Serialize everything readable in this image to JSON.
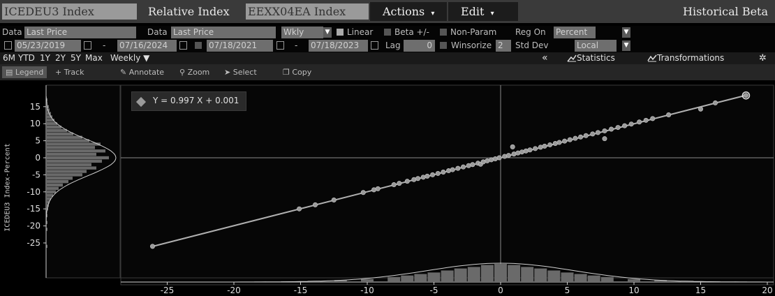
{
  "titlebar": {
    "security1": "ICEDEU3 Index",
    "relative_label": "Relative Index",
    "security2": "EEXX04EA Index",
    "actions_menu": "Actions",
    "edit_menu": "Edit",
    "function_title": "Historical Beta"
  },
  "params": {
    "data1_label": "Data",
    "data1_value": "Last Price",
    "data2_label": "Data",
    "data2_value": "Last Price",
    "frequency": "Wkly",
    "linear_label": "Linear",
    "beta_label": "Beta +/-",
    "nonparam_label": "Non-Param",
    "regon_label": "Reg On",
    "regon_value": "Percent",
    "range_start": "05/23/2019",
    "range_sep": "-",
    "range_end": "07/16/2024",
    "regress_start": "07/18/2021",
    "regress_sep": "-",
    "regress_end": "07/18/2023",
    "lag_label": "Lag",
    "lag_value": "0",
    "winsorize_label": "Winsorize",
    "winsorize_value": "2",
    "stddev_label": "Std Dev",
    "stddev_value": "Local"
  },
  "periods": [
    "6M",
    "YTD",
    "1Y",
    "2Y",
    "5Y",
    "Max"
  ],
  "period_frequency": "Weekly ▼",
  "right_tools": {
    "collapse": "«",
    "statistics": "Statistics",
    "transformations": "Transformations"
  },
  "toolbar": {
    "legend": "Legend",
    "track": "Track",
    "annotate": "Annotate",
    "zoom": "Zoom",
    "select": "Select",
    "copy": "Copy"
  },
  "icons": {
    "collapse": "double-chevron-left-icon",
    "statistics": "statistics-icon",
    "transformations": "transformations-icon",
    "settings": "gear-icon",
    "legend": "legend-icon",
    "track": "crosshair-icon",
    "annotate": "pencil-icon",
    "zoom": "magnifier-icon",
    "select": "cursor-icon",
    "copy": "copy-icon"
  },
  "colors": {
    "background": "#000000",
    "titlebar": "#3a3a3a",
    "field": "#6e6e6e",
    "points": "#9a9a9a",
    "fit_line": "#b0b0b0",
    "axis": "#cfcfcf"
  },
  "chart_data": {
    "type": "scatter",
    "title": "",
    "legend": "Y = 0.997 X + 0.001",
    "ylabel": "ICEDEU3 Index-Percent",
    "xlabel": "",
    "xlim": [
      -29,
      20.5
    ],
    "ylim": [
      -29,
      19
    ],
    "xticks": [
      -25,
      -20,
      -15,
      -10,
      -5,
      0,
      5,
      10,
      15,
      20
    ],
    "yticks": [
      15,
      10,
      5,
      0,
      -5,
      -10,
      -15,
      -20,
      -25
    ],
    "fit": {
      "slope": 0.997,
      "intercept": 0.001
    },
    "points": [
      [
        -26.1,
        -26.0
      ],
      [
        -15.1,
        -15.0
      ],
      [
        -13.9,
        -13.8
      ],
      [
        -12.5,
        -12.4
      ],
      [
        -10.3,
        -10.2
      ],
      [
        -9.5,
        -9.4
      ],
      [
        -9.2,
        -9.1
      ],
      [
        -8.0,
        -7.9
      ],
      [
        -7.6,
        -7.5
      ],
      [
        -7.0,
        -6.9
      ],
      [
        -6.5,
        -6.4
      ],
      [
        -6.2,
        -6.1
      ],
      [
        -5.8,
        -5.7
      ],
      [
        -5.5,
        -5.4
      ],
      [
        -5.1,
        -5.0
      ],
      [
        -4.7,
        -4.6
      ],
      [
        -4.3,
        -4.2
      ],
      [
        -3.9,
        -3.8
      ],
      [
        -3.6,
        -3.5
      ],
      [
        -3.2,
        -3.1
      ],
      [
        -2.8,
        -2.7
      ],
      [
        -2.4,
        -2.3
      ],
      [
        -2.1,
        -2.0
      ],
      [
        -1.7,
        -1.6
      ],
      [
        -1.5,
        -1.9
      ],
      [
        -1.3,
        -1.2
      ],
      [
        -1.0,
        -0.9
      ],
      [
        -0.7,
        -0.6
      ],
      [
        -0.4,
        -0.3
      ],
      [
        -0.1,
        0.0
      ],
      [
        0.3,
        0.4
      ],
      [
        0.6,
        0.7
      ],
      [
        0.9,
        3.2
      ],
      [
        1.0,
        1.1
      ],
      [
        1.3,
        1.4
      ],
      [
        1.6,
        1.7
      ],
      [
        1.9,
        2.0
      ],
      [
        2.2,
        2.3
      ],
      [
        2.6,
        2.7
      ],
      [
        3.0,
        3.1
      ],
      [
        3.3,
        3.4
      ],
      [
        3.7,
        3.8
      ],
      [
        4.1,
        4.2
      ],
      [
        4.4,
        4.5
      ],
      [
        4.8,
        4.9
      ],
      [
        5.2,
        5.3
      ],
      [
        5.6,
        5.7
      ],
      [
        6.0,
        6.1
      ],
      [
        6.4,
        6.5
      ],
      [
        6.9,
        7.0
      ],
      [
        7.3,
        7.4
      ],
      [
        7.8,
        5.6
      ],
      [
        7.8,
        7.9
      ],
      [
        8.3,
        8.4
      ],
      [
        8.8,
        8.9
      ],
      [
        9.3,
        9.4
      ],
      [
        9.8,
        9.9
      ],
      [
        10.4,
        10.5
      ],
      [
        10.9,
        11.0
      ],
      [
        11.4,
        11.5
      ],
      [
        12.6,
        12.6
      ],
      [
        15.0,
        14.3
      ],
      [
        16.1,
        16.1
      ],
      [
        18.4,
        18.3
      ]
    ],
    "y_histogram": [
      [
        17,
        0.2
      ],
      [
        16,
        0.2
      ],
      [
        15,
        0.4
      ],
      [
        14,
        0.5
      ],
      [
        13,
        0.7
      ],
      [
        12,
        0.9
      ],
      [
        11,
        1.2
      ],
      [
        10,
        1.6
      ],
      [
        9,
        2.2
      ],
      [
        8,
        3.0
      ],
      [
        7,
        3.9
      ],
      [
        6,
        5.2
      ],
      [
        5,
        6.2
      ],
      [
        4,
        7.8
      ],
      [
        3,
        7.0
      ],
      [
        2,
        8.5
      ],
      [
        1,
        7.2
      ],
      [
        0,
        9.0
      ],
      [
        -1,
        8.0
      ],
      [
        -2,
        6.5
      ],
      [
        -3,
        7.2
      ],
      [
        -4,
        5.8
      ],
      [
        -5,
        5.2
      ],
      [
        -6,
        3.8
      ],
      [
        -7,
        3.2
      ],
      [
        -8,
        2.4
      ],
      [
        -9,
        1.8
      ],
      [
        -10,
        1.4
      ],
      [
        -11,
        1.0
      ],
      [
        -12,
        0.7
      ],
      [
        -13,
        0.5
      ],
      [
        -14,
        0.4
      ],
      [
        -15,
        0.3
      ],
      [
        -17,
        0.2
      ],
      [
        -19,
        0.2
      ],
      [
        -21,
        0.2
      ],
      [
        -26,
        0.2
      ]
    ],
    "x_histogram": [
      [
        -18,
        0.2
      ],
      [
        -16,
        0.3
      ],
      [
        -14,
        0.5
      ],
      [
        -12,
        0.8
      ],
      [
        -10,
        1.2
      ],
      [
        -8,
        2.0
      ],
      [
        -7,
        2.6
      ],
      [
        -6,
        3.2
      ],
      [
        -5,
        3.8
      ],
      [
        -4,
        4.6
      ],
      [
        -3,
        5.4
      ],
      [
        -2,
        6.0
      ],
      [
        -1,
        6.8
      ],
      [
        0,
        7.2
      ],
      [
        1,
        6.8
      ],
      [
        2,
        6.0
      ],
      [
        3,
        5.4
      ],
      [
        4,
        4.6
      ],
      [
        5,
        3.8
      ],
      [
        6,
        3.2
      ],
      [
        7,
        2.6
      ],
      [
        8,
        2.0
      ],
      [
        10,
        1.2
      ],
      [
        12,
        0.8
      ],
      [
        14,
        0.5
      ],
      [
        16,
        0.3
      ],
      [
        18,
        0.2
      ]
    ]
  }
}
